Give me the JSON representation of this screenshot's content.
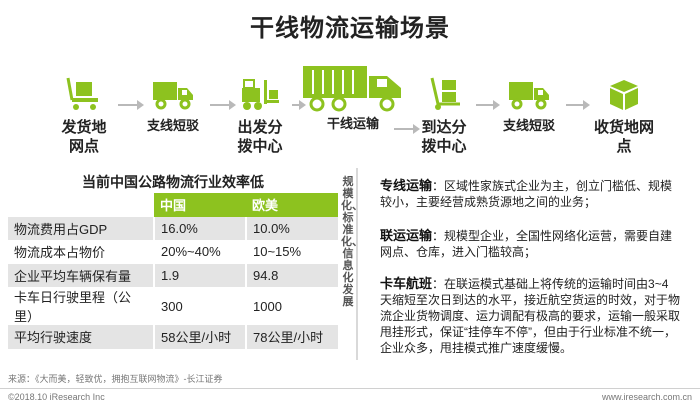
{
  "title": "干线物流运输场景",
  "flow": {
    "nodes": [
      {
        "label": "发货地\n网点",
        "icon": "warehouse-cart-icon"
      },
      {
        "label": "支线短驳",
        "icon": "small-truck-icon"
      },
      {
        "label": "出发分\n拨中心",
        "icon": "forklift-icon"
      },
      {
        "label": "干线运输",
        "icon": "large-truck-icon"
      },
      {
        "label": "到达分\n拨中心",
        "icon": "hand-truck-icon"
      },
      {
        "label": "支线短驳",
        "icon": "small-truck-icon"
      },
      {
        "label": "收货地网\n点",
        "icon": "package-box-icon"
      }
    ],
    "accent_color": "#8dc21f"
  },
  "table": {
    "title": "当前中国公路物流行业效率低",
    "headers": [
      "",
      "中国",
      "欧美"
    ],
    "rows": [
      [
        "物流费用占GDP",
        "16.0%",
        "10.0%"
      ],
      [
        "物流成本占物价",
        "20%~40%",
        "10~15%"
      ],
      [
        "企业平均车辆保有量",
        "1.9",
        "94.8"
      ],
      [
        "卡车日行驶里程（公里）",
        "300",
        "1000"
      ],
      [
        "平均行驶速度",
        "58公里/小时",
        "78公里/小时"
      ]
    ]
  },
  "vertical_note": "规模化、标准化、信息化发展",
  "descriptions": [
    {
      "term": "专线运输",
      "text": "：区域性家族式企业为主，创立门槛低、规模较小，主要经营成熟货源地之间的业务；"
    },
    {
      "term": "联运运输",
      "text": "：规模型企业，全国性网络化运营，需要自建网点、仓库，进入门槛较高；"
    },
    {
      "term": "卡车航班",
      "text": "：在联运模式基础上将传统的运输时间由3~4天缩短至次日到达的水平，接近航空货运的时效，对于物流企业货物调度、运力调配有极高的要求，运输一般采取甩挂形式，保证“挂停车不停”，但由于行业标准不统一，企业众多，甩挂模式推广速度缓慢。"
    }
  ],
  "source": "来源：《大而美，轻致优，拥抱互联网物流》-长江证券",
  "copyright": "©2018.10 iResearch Inc",
  "site": "www.iresearch.com.cn"
}
